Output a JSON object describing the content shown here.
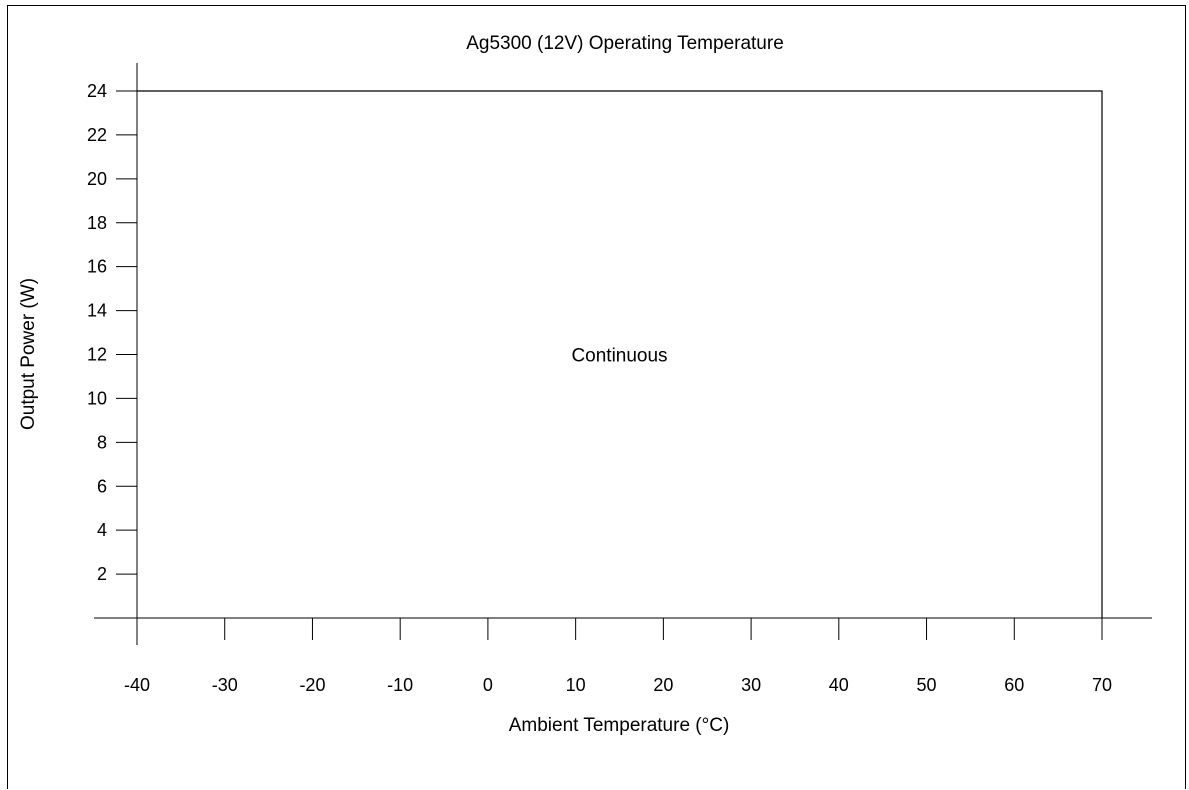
{
  "chart_data": {
    "type": "line",
    "title": "Ag5300 (12V) Operating Temperature",
    "xlabel": "Ambient Temperature (°C)",
    "ylabel": "Output Power (W)",
    "xlim": [
      -40,
      70
    ],
    "ylim": [
      0,
      24
    ],
    "x_ticks": [
      -40,
      -30,
      -20,
      -10,
      0,
      10,
      20,
      30,
      40,
      50,
      60,
      70
    ],
    "y_ticks": [
      2,
      4,
      6,
      8,
      10,
      12,
      14,
      16,
      18,
      20,
      22,
      24
    ],
    "grid": false,
    "series": [
      {
        "x": [
          -40,
          70,
          70
        ],
        "y": [
          24,
          24,
          0
        ]
      }
    ],
    "annotations": [
      {
        "text": "Continuous",
        "x": 15,
        "y": 12
      }
    ]
  }
}
